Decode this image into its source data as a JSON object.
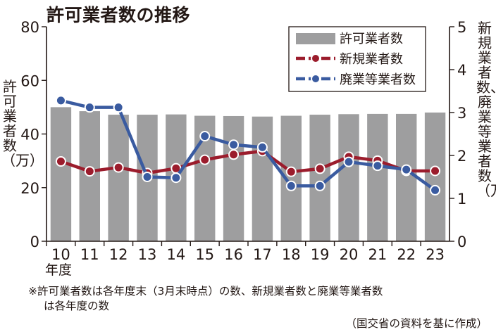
{
  "title": "許可業者数の推移",
  "chart_data": {
    "type": "bar+line",
    "categories": [
      "10",
      "11",
      "12",
      "13",
      "14",
      "15",
      "16",
      "17",
      "18",
      "19",
      "20",
      "21",
      "22",
      "23"
    ],
    "x_unit_label": "年度",
    "left_axis": {
      "label": "許可業者数（万）",
      "ticks": [
        "0",
        "20",
        "40",
        "60",
        "80"
      ],
      "range": [
        0,
        80
      ]
    },
    "right_axis": {
      "label": "新規業者数、廃業等業者数（万）",
      "ticks": [
        "0",
        "1",
        "2",
        "3",
        "4",
        "5"
      ],
      "range": [
        0,
        5
      ]
    },
    "series": [
      {
        "name": "許可業者数",
        "kind": "bar",
        "axis": "left",
        "color": "#9e9e9f",
        "values": [
          50.0,
          48.5,
          47.2,
          47.2,
          47.3,
          46.8,
          46.7,
          46.5,
          46.8,
          47.2,
          47.4,
          47.5,
          47.5,
          48.0
        ]
      },
      {
        "name": "新規業者数",
        "kind": "line",
        "axis": "right",
        "color": "#9b1c2c",
        "values": [
          1.86,
          1.63,
          1.72,
          1.59,
          1.7,
          1.9,
          2.02,
          2.1,
          1.62,
          1.69,
          1.97,
          1.88,
          1.64,
          1.64
        ]
      },
      {
        "name": "廃業等業者数",
        "kind": "line",
        "axis": "right",
        "color": "#3a5ba0",
        "values": [
          3.28,
          3.12,
          3.12,
          1.5,
          1.48,
          2.45,
          2.25,
          2.19,
          1.29,
          1.29,
          1.85,
          1.76,
          1.67,
          1.19
        ]
      }
    ]
  },
  "notes": {
    "line1": "※許可業者数は各年度末（3月末時点）の数、新規業者数と廃業等業者数",
    "line2": "は各年度の数",
    "source": "（国交省の資料を基に作成）"
  }
}
